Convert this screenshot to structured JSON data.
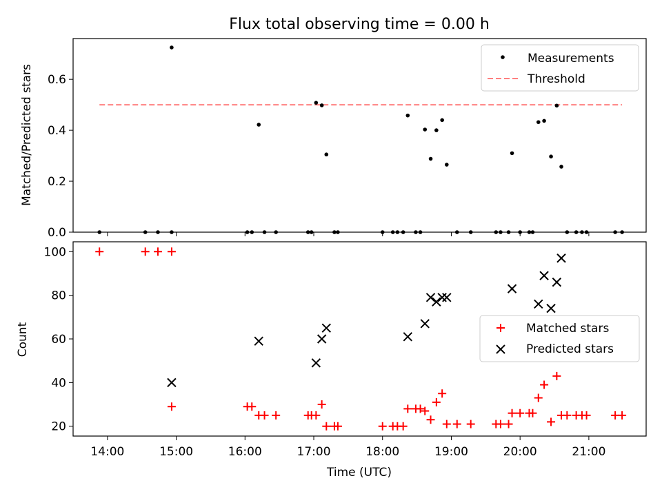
{
  "chart_data": [
    {
      "type": "scatter",
      "title": "Flux total observing time = 0.00 h",
      "xlabel": "",
      "ylabel": "Matched/Predicted stars",
      "xlim": [
        "13:30",
        "21:50"
      ],
      "ylim": [
        0,
        0.76
      ],
      "yticks": [
        "0.0",
        "0.2",
        "0.4",
        "0.6"
      ],
      "legend_position": "upper right",
      "grid": false,
      "series": [
        {
          "name": "Measurements",
          "marker": "dot",
          "color": "#000000",
          "points": [
            [
              "13:53",
              0.0
            ],
            [
              "14:33",
              0.0
            ],
            [
              "14:44",
              0.0
            ],
            [
              "14:56",
              0.725
            ],
            [
              "14:56",
              0.0
            ],
            [
              "16:02",
              0.0
            ],
            [
              "16:06",
              0.0
            ],
            [
              "16:12",
              0.422
            ],
            [
              "16:17",
              0.0
            ],
            [
              "16:27",
              0.0
            ],
            [
              "16:55",
              0.0
            ],
            [
              "16:58",
              0.0
            ],
            [
              "17:02",
              0.508
            ],
            [
              "17:07",
              0.498
            ],
            [
              "17:11",
              0.305
            ],
            [
              "17:18",
              0.0
            ],
            [
              "17:21",
              0.0
            ],
            [
              "18:00",
              0.0
            ],
            [
              "18:09",
              0.0
            ],
            [
              "18:13",
              0.0
            ],
            [
              "18:18",
              0.0
            ],
            [
              "18:22",
              0.458
            ],
            [
              "18:29",
              0.0
            ],
            [
              "18:33",
              0.0
            ],
            [
              "18:37",
              0.403
            ],
            [
              "18:42",
              0.288
            ],
            [
              "18:47",
              0.4
            ],
            [
              "18:52",
              0.44
            ],
            [
              "18:56",
              0.265
            ],
            [
              "19:05",
              0.0
            ],
            [
              "19:17",
              0.0
            ],
            [
              "19:39",
              0.0
            ],
            [
              "19:43",
              0.0
            ],
            [
              "19:50",
              0.0
            ],
            [
              "19:53",
              0.31
            ],
            [
              "20:00",
              0.0
            ],
            [
              "20:08",
              0.0
            ],
            [
              "20:11",
              0.0
            ],
            [
              "20:16",
              0.432
            ],
            [
              "20:21",
              0.437
            ],
            [
              "20:27",
              0.297
            ],
            [
              "20:32",
              0.497
            ],
            [
              "20:36",
              0.257
            ],
            [
              "20:41",
              0.0
            ],
            [
              "20:49",
              0.0
            ],
            [
              "20:54",
              0.0
            ],
            [
              "20:58",
              0.0
            ],
            [
              "21:23",
              0.0
            ],
            [
              "21:29",
              0.0
            ]
          ]
        },
        {
          "name": "Threshold",
          "marker": "dashed-line",
          "color": "#ff8080",
          "points": [
            [
              "13:53",
              0.5
            ],
            [
              "21:29",
              0.5
            ]
          ]
        }
      ]
    },
    {
      "type": "scatter",
      "title": "",
      "xlabel": "Time (UTC)",
      "ylabel": "Count",
      "xlim": [
        "13:30",
        "21:50"
      ],
      "ylim": [
        15.5,
        104.5
      ],
      "yticks": [
        "20",
        "40",
        "60",
        "80",
        "100"
      ],
      "xticks": [
        "14:00",
        "15:00",
        "16:00",
        "17:00",
        "18:00",
        "19:00",
        "20:00",
        "21:00"
      ],
      "legend_position": "center right",
      "grid": false,
      "series": [
        {
          "name": "Matched stars",
          "marker": "plus",
          "color": "#ff0000",
          "points": [
            [
              "13:53",
              100
            ],
            [
              "14:33",
              100
            ],
            [
              "14:44",
              100
            ],
            [
              "14:56",
              100
            ],
            [
              "14:56",
              29
            ],
            [
              "16:02",
              29
            ],
            [
              "16:06",
              29
            ],
            [
              "16:12",
              25
            ],
            [
              "16:17",
              25
            ],
            [
              "16:27",
              25
            ],
            [
              "16:55",
              25
            ],
            [
              "16:58",
              25
            ],
            [
              "17:02",
              25
            ],
            [
              "17:07",
              30
            ],
            [
              "17:11",
              20
            ],
            [
              "17:18",
              20
            ],
            [
              "17:21",
              20
            ],
            [
              "18:00",
              20
            ],
            [
              "18:09",
              20
            ],
            [
              "18:13",
              20
            ],
            [
              "18:18",
              20
            ],
            [
              "18:22",
              28
            ],
            [
              "18:29",
              28
            ],
            [
              "18:33",
              28
            ],
            [
              "18:37",
              27
            ],
            [
              "18:42",
              23
            ],
            [
              "18:47",
              31
            ],
            [
              "18:52",
              35
            ],
            [
              "18:56",
              21
            ],
            [
              "19:05",
              21
            ],
            [
              "19:17",
              21
            ],
            [
              "19:39",
              21
            ],
            [
              "19:43",
              21
            ],
            [
              "19:50",
              21
            ],
            [
              "19:53",
              26
            ],
            [
              "20:00",
              26
            ],
            [
              "20:08",
              26
            ],
            [
              "20:11",
              26
            ],
            [
              "20:16",
              33
            ],
            [
              "20:21",
              39
            ],
            [
              "20:27",
              22
            ],
            [
              "20:32",
              43
            ],
            [
              "20:36",
              25
            ],
            [
              "20:41",
              25
            ],
            [
              "20:49",
              25
            ],
            [
              "20:54",
              25
            ],
            [
              "20:58",
              25
            ],
            [
              "21:23",
              25
            ],
            [
              "21:29",
              25
            ]
          ]
        },
        {
          "name": "Predicted stars",
          "marker": "x",
          "color": "#000000",
          "points": [
            [
              "14:56",
              40
            ],
            [
              "16:12",
              59
            ],
            [
              "17:02",
              49
            ],
            [
              "17:07",
              60
            ],
            [
              "17:11",
              65
            ],
            [
              "18:22",
              61
            ],
            [
              "18:37",
              67
            ],
            [
              "18:42",
              79
            ],
            [
              "18:47",
              77
            ],
            [
              "18:52",
              79
            ],
            [
              "18:56",
              79
            ],
            [
              "19:53",
              83
            ],
            [
              "20:16",
              76
            ],
            [
              "20:21",
              89
            ],
            [
              "20:27",
              74
            ],
            [
              "20:32",
              86
            ],
            [
              "20:36",
              97
            ]
          ]
        }
      ]
    }
  ]
}
